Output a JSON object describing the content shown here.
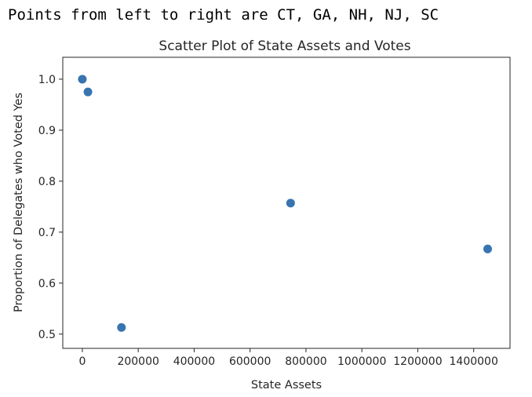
{
  "caption": "Points from left to right are CT, GA, NH, NJ, SC",
  "chart_data": {
    "type": "scatter",
    "title": "Scatter Plot of State Assets and Votes",
    "xlabel": "State Assets",
    "ylabel": "Proportion of Delegates who Voted Yes",
    "xlim": [
      -70000,
      1530000
    ],
    "ylim": [
      0.472,
      1.043
    ],
    "x_ticks": [
      0,
      200000,
      400000,
      600000,
      800000,
      1000000,
      1200000,
      1400000
    ],
    "x_tick_labels": [
      "0",
      "200000",
      "400000",
      "600000",
      "800000",
      "1000000",
      "1200000",
      "1400000"
    ],
    "y_ticks": [
      0.5,
      0.6,
      0.7,
      0.8,
      0.9,
      1.0
    ],
    "y_tick_labels": [
      "0.5",
      "0.6",
      "0.7",
      "0.8",
      "0.9",
      "1.0"
    ],
    "grid": false,
    "marker_color": "#3874b0",
    "points": [
      {
        "x": 0,
        "y": 1.0
      },
      {
        "x": 20000,
        "y": 0.975
      },
      {
        "x": 140000,
        "y": 0.513
      },
      {
        "x": 745000,
        "y": 0.757
      },
      {
        "x": 1450000,
        "y": 0.667
      }
    ]
  }
}
